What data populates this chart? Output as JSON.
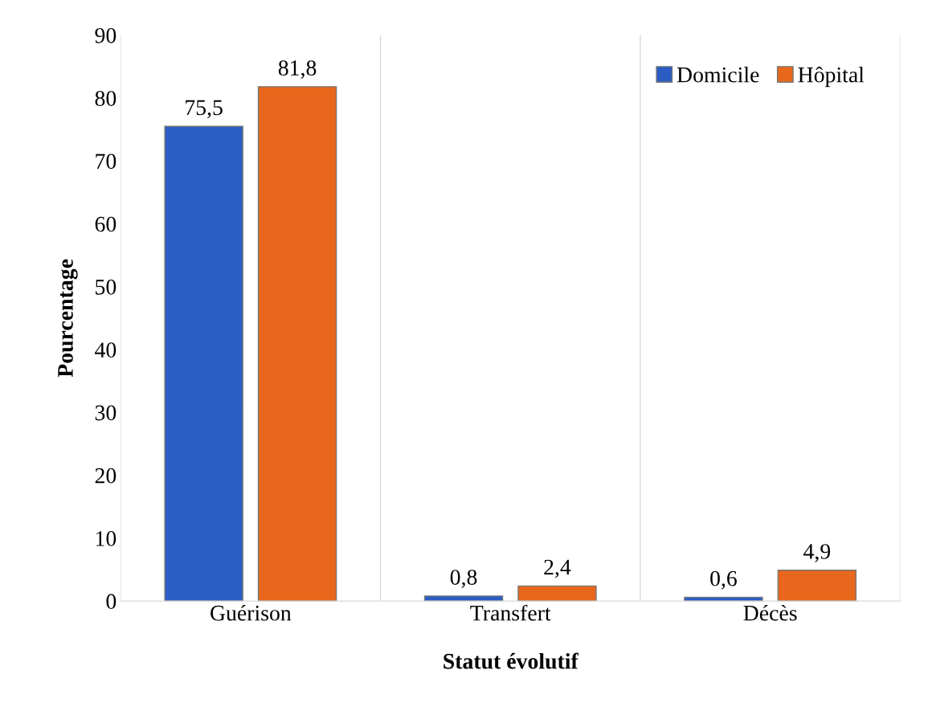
{
  "chart_data": {
    "type": "bar",
    "xlabel": "Statut évolutif",
    "ylabel": "Pourcentage",
    "categories": [
      "Guérison",
      "Transfert",
      "Décès"
    ],
    "series": [
      {
        "name": "Domicile",
        "color": "#2a5cc4",
        "values": [
          75.5,
          0.8,
          0.6
        ],
        "value_labels": [
          "75,5",
          "0,8",
          "0,6"
        ]
      },
      {
        "name": "Hôpital",
        "color": "#e8671c",
        "values": [
          81.8,
          2.4,
          4.9
        ],
        "value_labels": [
          "81,8",
          "2,4",
          "4,9"
        ]
      }
    ],
    "ylim": [
      0,
      90
    ],
    "yticks": [
      0,
      10,
      20,
      30,
      40,
      50,
      60,
      70,
      80,
      90
    ],
    "grid": "x",
    "legend": "top right"
  }
}
